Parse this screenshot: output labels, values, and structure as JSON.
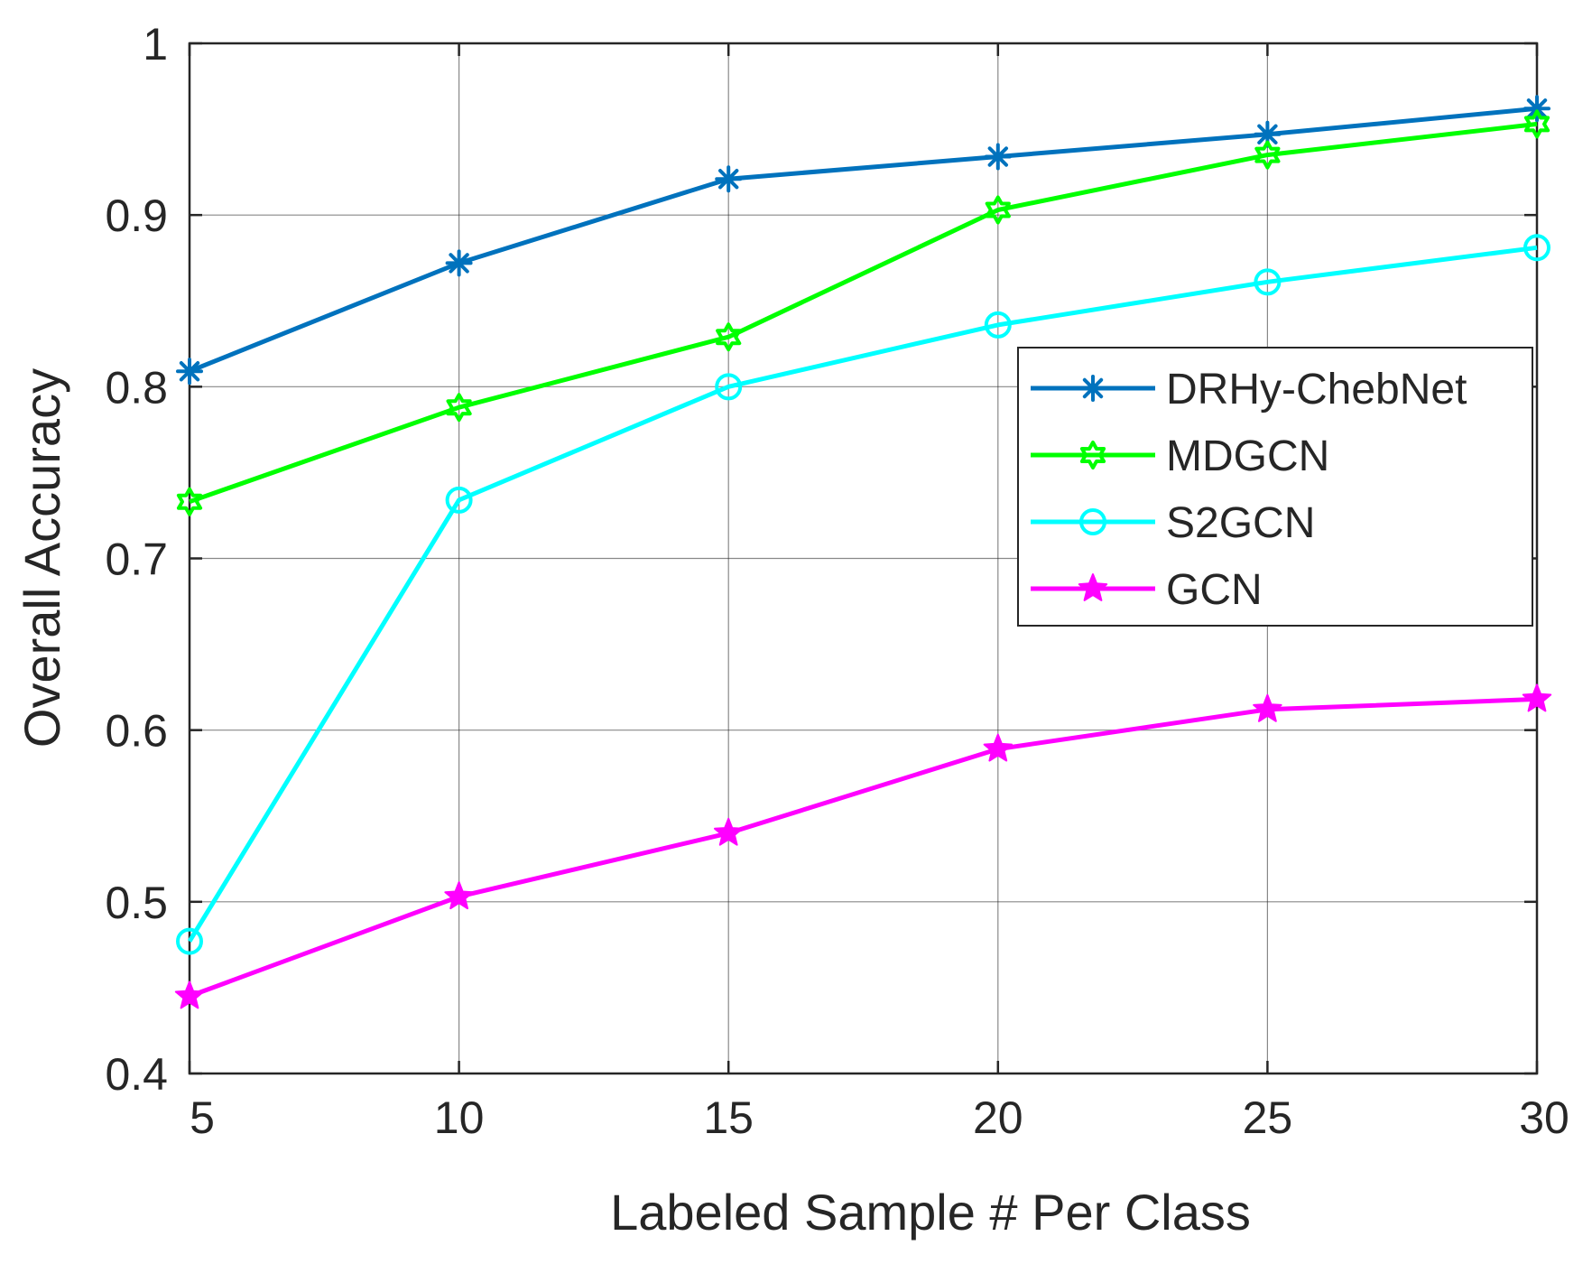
{
  "chart_data": {
    "type": "line",
    "title": "",
    "xlabel": "Labeled Sample # Per Class",
    "ylabel": "Overall Accuracy",
    "x": [
      5,
      10,
      15,
      20,
      25,
      30
    ],
    "xlim": [
      5,
      30
    ],
    "ylim": [
      0.4,
      1.0
    ],
    "xticks": [
      5,
      10,
      15,
      20,
      25,
      30
    ],
    "xtick_labels": [
      "5",
      "10",
      "15",
      "20",
      "25",
      "30"
    ],
    "yticks": [
      0.4,
      0.5,
      0.6,
      0.7,
      0.8,
      0.9,
      1.0
    ],
    "ytick_labels": [
      "0.4",
      "0.5",
      "0.6",
      "0.7",
      "0.8",
      "0.9",
      "1"
    ],
    "grid": true,
    "legend_position": "center-right",
    "series": [
      {
        "name": "DRHy-ChebNet",
        "color": "#0072BD",
        "marker": "asterisk",
        "values": [
          0.809,
          0.872,
          0.921,
          0.934,
          0.947,
          0.962
        ]
      },
      {
        "name": "MDGCN",
        "color": "#00FF00",
        "marker": "hexagram",
        "values": [
          0.733,
          0.788,
          0.829,
          0.903,
          0.935,
          0.953
        ]
      },
      {
        "name": "S2GCN",
        "color": "#00FFFF",
        "marker": "circle",
        "values": [
          0.477,
          0.734,
          0.8,
          0.836,
          0.861,
          0.881
        ]
      },
      {
        "name": "GCN",
        "color": "#FF00FF",
        "marker": "pentagram",
        "values": [
          0.445,
          0.503,
          0.54,
          0.589,
          0.612,
          0.618
        ]
      }
    ]
  }
}
